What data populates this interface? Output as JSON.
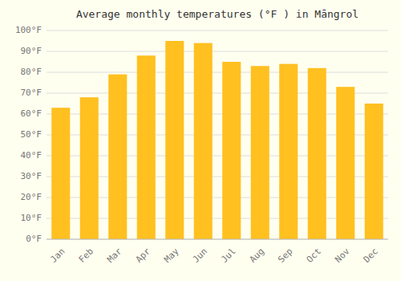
{
  "chart_data": {
    "type": "bar",
    "title": "Average monthly temperatures (°F ) in Māngrol",
    "categories": [
      "Jan",
      "Feb",
      "Mar",
      "Apr",
      "May",
      "Jun",
      "Jul",
      "Aug",
      "Sep",
      "Oct",
      "Nov",
      "Dec"
    ],
    "values": [
      63,
      68,
      79,
      88,
      95,
      94,
      85,
      83,
      84,
      82,
      73,
      65
    ],
    "color": "#FFC020",
    "ylim": [
      0,
      100
    ],
    "yticks": [
      {
        "value": 0,
        "label": "0°F"
      },
      {
        "value": 10,
        "label": "10°F"
      },
      {
        "value": 20,
        "label": "20°F"
      },
      {
        "value": 30,
        "label": "30°F"
      },
      {
        "value": 40,
        "label": "40°F"
      },
      {
        "value": 50,
        "label": "50°F"
      },
      {
        "value": 60,
        "label": "60°F"
      },
      {
        "value": 70,
        "label": "70°F"
      },
      {
        "value": 80,
        "label": "80°F"
      },
      {
        "value": 90,
        "label": "90°F"
      },
      {
        "value": 100,
        "label": "100°F"
      }
    ],
    "grid": true
  }
}
